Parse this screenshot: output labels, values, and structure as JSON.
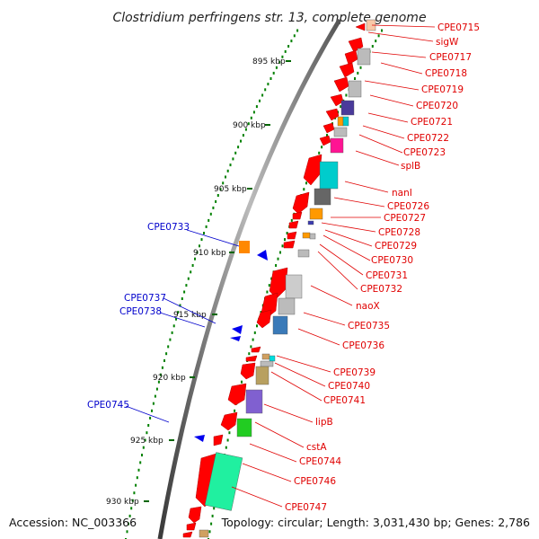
{
  "title": "Clostridium perfringens str. 13, complete genome",
  "footer": {
    "accession": "Accession: NC_003366",
    "topology": "Topology: circular; Length: 3,031,430 bp; Genes: 2,786"
  },
  "scale_ticks": [
    "895 kbp",
    "900 kbp",
    "905 kbp",
    "910 kbp",
    "915 kbp",
    "920 kbp",
    "925 kbp",
    "930 kbp"
  ],
  "genes_right": [
    "CPE0715",
    "sigW",
    "CPE0717",
    "CPE0718",
    "CPE0719",
    "CPE0720",
    "CPE0721",
    "CPE0722",
    "CPE0723",
    "splB",
    "nanI",
    "CPE0726",
    "CPE0727",
    "CPE0728",
    "CPE0729",
    "CPE0730",
    "CPE0731",
    "CPE0732",
    "naoX",
    "CPE0735",
    "CPE0736",
    "CPE0739",
    "CPE0740",
    "CPE0741",
    "lipB",
    "cstA",
    "CPE0744",
    "CPE0746",
    "CPE0747"
  ],
  "genes_left": [
    "CPE0733",
    "CPE0737",
    "CPE0738",
    "CPE0745"
  ],
  "colors": {
    "forward_gene": "#ff0000",
    "reverse_gene": "#0000ee",
    "right_label": "#e00000",
    "left_label": "#0000cc",
    "backbone": "#777777",
    "tick_marks": "#008000"
  }
}
